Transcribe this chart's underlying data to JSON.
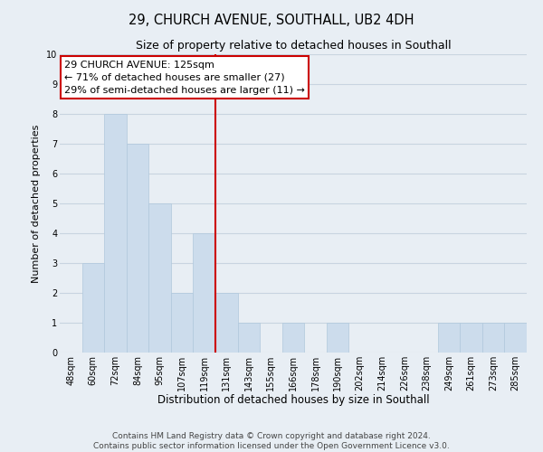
{
  "title": "29, CHURCH AVENUE, SOUTHALL, UB2 4DH",
  "subtitle": "Size of property relative to detached houses in Southall",
  "xlabel": "Distribution of detached houses by size in Southall",
  "ylabel": "Number of detached properties",
  "categories": [
    "48sqm",
    "60sqm",
    "72sqm",
    "84sqm",
    "95sqm",
    "107sqm",
    "119sqm",
    "131sqm",
    "143sqm",
    "155sqm",
    "166sqm",
    "178sqm",
    "190sqm",
    "202sqm",
    "214sqm",
    "226sqm",
    "238sqm",
    "249sqm",
    "261sqm",
    "273sqm",
    "285sqm"
  ],
  "values": [
    0,
    3,
    8,
    7,
    5,
    2,
    4,
    2,
    1,
    0,
    1,
    0,
    1,
    0,
    0,
    0,
    0,
    1,
    1,
    1,
    1
  ],
  "bar_color": "#ccdcec",
  "bar_edge_color": "#b0c8dc",
  "grid_color": "#c8d4e0",
  "vline_color": "#cc0000",
  "annotation_text": "29 CHURCH AVENUE: 125sqm\n← 71% of detached houses are smaller (27)\n29% of semi-detached houses are larger (11) →",
  "annotation_box_facecolor": "#ffffff",
  "annotation_box_edgecolor": "#cc0000",
  "ylim": [
    0,
    10
  ],
  "yticks": [
    0,
    1,
    2,
    3,
    4,
    5,
    6,
    7,
    8,
    9,
    10
  ],
  "footer_text": "Contains HM Land Registry data © Crown copyright and database right 2024.\nContains public sector information licensed under the Open Government Licence v3.0.",
  "background_color": "#e8eef4",
  "plot_bg_color": "#e8eef4",
  "title_fontsize": 10.5,
  "subtitle_fontsize": 9,
  "xlabel_fontsize": 8.5,
  "ylabel_fontsize": 8,
  "tick_fontsize": 7,
  "footer_fontsize": 6.5,
  "annotation_fontsize": 8
}
